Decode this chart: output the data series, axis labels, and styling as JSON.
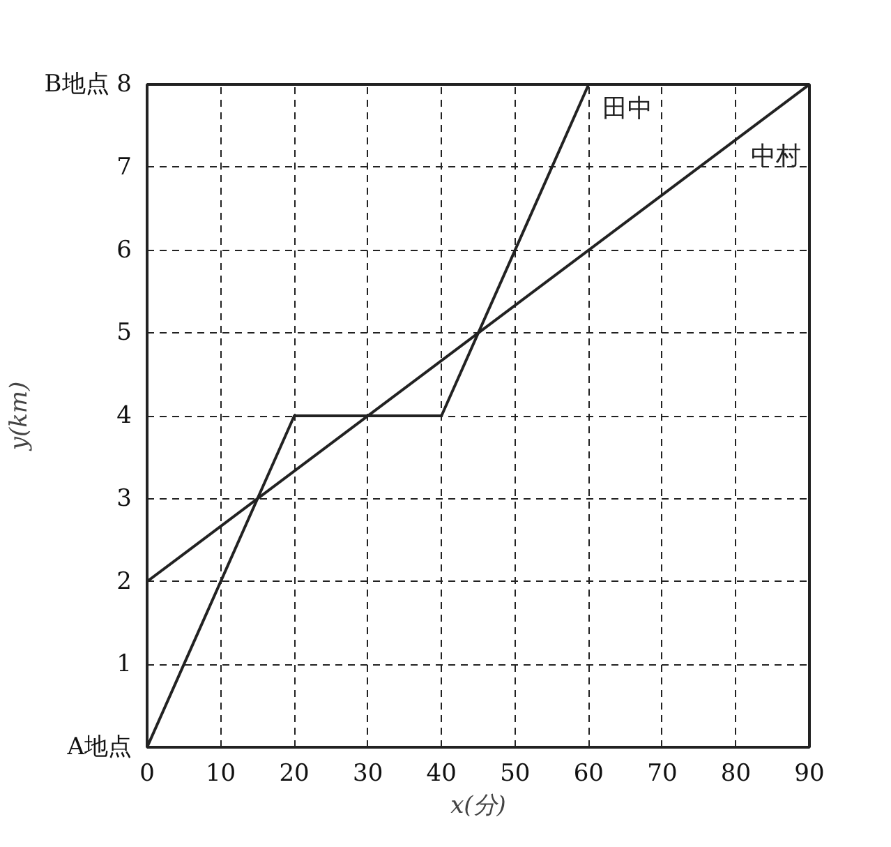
{
  "chart_data": {
    "type": "line",
    "xlabel": "x(分)",
    "ylabel": "y(km)",
    "series": [
      {
        "name": "田中",
        "color": "#222222",
        "x": [
          0,
          20,
          40,
          60
        ],
        "values": [
          0,
          4,
          4,
          8
        ]
      },
      {
        "name": "中村",
        "color": "#222222",
        "x": [
          0,
          90
        ],
        "values": [
          2,
          8
        ]
      }
    ],
    "xlim": [
      0,
      90
    ],
    "ylim": [
      0,
      8
    ],
    "xticks": [
      0,
      10,
      20,
      30,
      40,
      50,
      60,
      70,
      80,
      90
    ],
    "yticks": [
      {
        "value": 0,
        "label": "A地点"
      },
      1,
      2,
      3,
      4,
      5,
      6,
      7,
      {
        "value": 8,
        "label": "B地点 8"
      }
    ],
    "grid": true,
    "marker": "none",
    "line_style": "solid"
  }
}
